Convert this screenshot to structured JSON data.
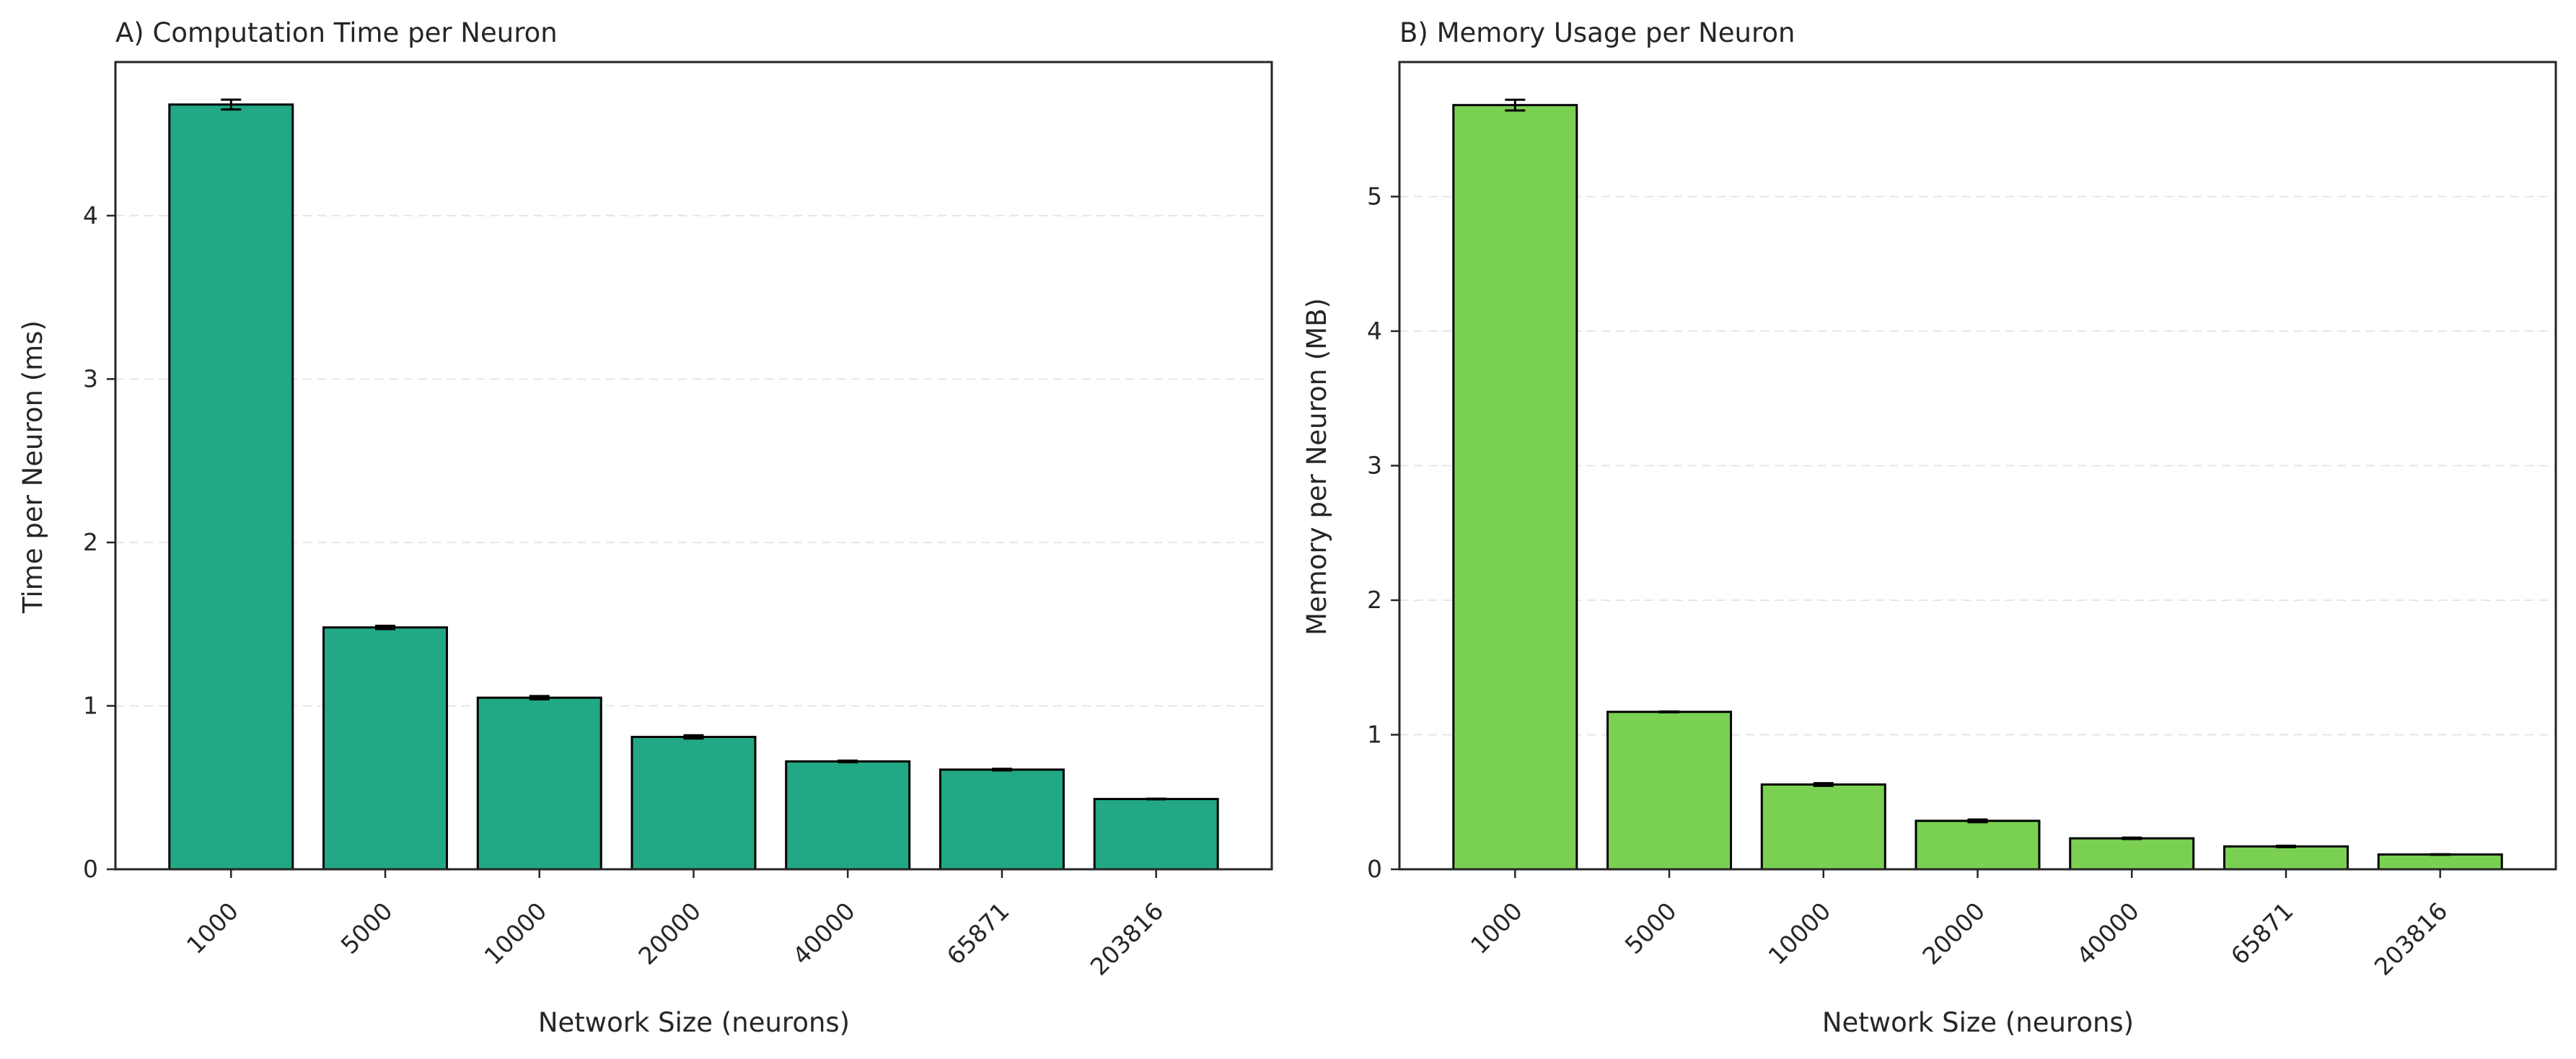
{
  "colors": {
    "panel_a_bar": "#22a884",
    "panel_b_bar": "#7ad151",
    "edge": "#000000",
    "grid": "#e6e6e6"
  },
  "chart_data": [
    {
      "type": "bar",
      "title": "A) Computation Time per Neuron",
      "xlabel": "Network Size (neurons)",
      "ylabel": "Time per Neuron (ms)",
      "categories": [
        "1000",
        "5000",
        "10000",
        "20000",
        "40000",
        "65871",
        "203816"
      ],
      "values": [
        4.68,
        1.48,
        1.05,
        0.81,
        0.66,
        0.61,
        0.43
      ],
      "errors": [
        0.03,
        0.01,
        0.01,
        0.01,
        0.005,
        0.005,
        0.002
      ],
      "ylim": [
        0,
        4.94
      ],
      "yticks": [
        0,
        1,
        2,
        3,
        4
      ],
      "grid": "horizontal dashed",
      "error_bars": true
    },
    {
      "type": "bar",
      "title": "B) Memory Usage per Neuron",
      "xlabel": "Network Size (neurons)",
      "ylabel": "Memory per Neuron (MB)",
      "categories": [
        "1000",
        "5000",
        "10000",
        "20000",
        "40000",
        "65871",
        "203816"
      ],
      "values": [
        5.68,
        1.17,
        0.63,
        0.36,
        0.23,
        0.17,
        0.11
      ],
      "errors": [
        0.04,
        0.003,
        0.01,
        0.01,
        0.005,
        0.005,
        0.002
      ],
      "ylim": [
        0,
        6.0
      ],
      "yticks": [
        0,
        1,
        2,
        3,
        4,
        5
      ],
      "grid": "horizontal dashed",
      "error_bars": true
    }
  ]
}
